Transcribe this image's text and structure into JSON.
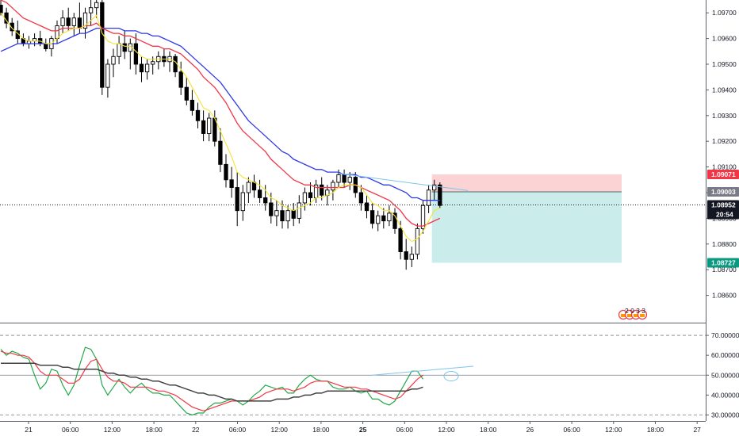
{
  "chart_data": [
    {
      "type": "candlestick",
      "panel": "price",
      "ylim": [
        1.085,
        1.0975
      ],
      "yticks": [
        "1.09700",
        "1.09600",
        "1.09500",
        "1.09400",
        "1.09300",
        "1.09200",
        "1.09100",
        "1.09000",
        "1.08900",
        "1.08800",
        "1.08700",
        "1.08600"
      ],
      "price_labels": {
        "stop": {
          "text": "1.09071",
          "value": 1.09071,
          "color": "#f23645"
        },
        "entry": {
          "text": "1.09003",
          "value": 1.09003,
          "color": "#787b86"
        },
        "current": {
          "text": "1.08952",
          "value": 1.08952,
          "color": "#131722"
        },
        "countdown": {
          "text": "20:54",
          "color": "#131722"
        },
        "target": {
          "text": "1.08727",
          "value": 1.08727,
          "color": "#089981"
        }
      },
      "position": {
        "type": "short",
        "entry": 1.09003,
        "stop": 1.09071,
        "target": 1.08727,
        "risk_color": "#fccbcd",
        "reward_color": "#c7ebe9"
      },
      "candles": [
        [
          1.0973,
          1.0976,
          1.0969,
          1.097
        ],
        [
          1.097,
          1.0972,
          1.0964,
          1.0966
        ],
        [
          1.0966,
          1.0968,
          1.0961,
          1.0963
        ],
        [
          1.0963,
          1.0967,
          1.0958,
          1.096
        ],
        [
          1.096,
          1.0962,
          1.0957,
          1.0958
        ],
        [
          1.0958,
          1.0961,
          1.0956,
          1.0959
        ],
        [
          1.0959,
          1.0962,
          1.0957,
          1.096
        ],
        [
          1.096,
          1.0963,
          1.0957,
          1.0958
        ],
        [
          1.0958,
          1.096,
          1.0955,
          1.0956
        ],
        [
          1.0956,
          1.0961,
          1.0953,
          1.096
        ],
        [
          1.096,
          1.0967,
          1.0958,
          1.0965
        ],
        [
          1.0965,
          1.0971,
          1.0962,
          1.0968
        ],
        [
          1.0968,
          1.0972,
          1.0963,
          1.0965
        ],
        [
          1.0965,
          1.097,
          1.0961,
          1.0968
        ],
        [
          1.0968,
          1.0974,
          1.0962,
          1.0964
        ],
        [
          1.0964,
          1.0972,
          1.096,
          1.097
        ],
        [
          1.097,
          1.0976,
          1.0965,
          1.0972
        ],
        [
          1.0972,
          1.0976,
          1.0968,
          1.0974
        ],
        [
          1.0974,
          1.0976,
          1.0938,
          1.0941
        ],
        [
          1.0941,
          1.0952,
          1.0937,
          1.095
        ],
        [
          1.095,
          1.0956,
          1.0945,
          1.0953
        ],
        [
          1.0953,
          1.0961,
          1.095,
          1.0958
        ],
        [
          1.0958,
          1.0963,
          1.0952,
          1.0955
        ],
        [
          1.0955,
          1.096,
          1.0948,
          1.0958
        ],
        [
          1.0958,
          1.0962,
          1.0946,
          1.095
        ],
        [
          1.095,
          1.0953,
          1.0943,
          1.0947
        ],
        [
          1.0947,
          1.0952,
          1.0944,
          1.095
        ],
        [
          1.095,
          1.0953,
          1.0946,
          1.0951
        ],
        [
          1.0951,
          1.0955,
          1.0948,
          1.0953
        ],
        [
          1.0953,
          1.0956,
          1.0949,
          1.0951
        ],
        [
          1.0951,
          1.0955,
          1.0947,
          1.0953
        ],
        [
          1.0953,
          1.0954,
          1.0945,
          1.0947
        ],
        [
          1.0947,
          1.0951,
          1.0938,
          1.0941
        ],
        [
          1.0941,
          1.0945,
          1.0934,
          1.0936
        ],
        [
          1.0936,
          1.094,
          1.093,
          1.0932
        ],
        [
          1.0932,
          1.0935,
          1.0925,
          1.0928
        ],
        [
          1.0928,
          1.0932,
          1.092,
          1.0923
        ],
        [
          1.0923,
          1.0931,
          1.092,
          1.0929
        ],
        [
          1.0929,
          1.0932,
          1.0918,
          1.092
        ],
        [
          1.092,
          1.0925,
          1.0908,
          1.0911
        ],
        [
          1.0911,
          1.0915,
          1.0902,
          1.0905
        ],
        [
          1.0905,
          1.091,
          1.0898,
          1.0902
        ],
        [
          1.0902,
          1.0908,
          1.0887,
          1.0893
        ],
        [
          1.0893,
          1.0903,
          1.0889,
          1.09
        ],
        [
          1.09,
          1.0906,
          1.0896,
          1.0904
        ],
        [
          1.0904,
          1.0907,
          1.0898,
          1.0901
        ],
        [
          1.0901,
          1.0905,
          1.0896,
          1.0898
        ],
        [
          1.0898,
          1.0903,
          1.0893,
          1.0896
        ],
        [
          1.0896,
          1.09,
          1.0888,
          1.0891
        ],
        [
          1.0891,
          1.0897,
          1.0887,
          1.0893
        ],
        [
          1.0893,
          1.0897,
          1.0886,
          1.0889
        ],
        [
          1.0889,
          1.0895,
          1.0886,
          1.0893
        ],
        [
          1.0893,
          1.0896,
          1.0887,
          1.089
        ],
        [
          1.089,
          1.0899,
          1.0888,
          1.0896
        ],
        [
          1.0896,
          1.0902,
          1.0893,
          1.09
        ],
        [
          1.09,
          1.0904,
          1.0895,
          1.0898
        ],
        [
          1.0898,
          1.0905,
          1.0896,
          1.0903
        ],
        [
          1.0903,
          1.0906,
          1.0897,
          1.0899
        ],
        [
          1.0899,
          1.0903,
          1.0895,
          1.0901
        ],
        [
          1.0901,
          1.0905,
          1.0897,
          1.0904
        ],
        [
          1.0904,
          1.0909,
          1.0902,
          1.0907
        ],
        [
          1.0907,
          1.0909,
          1.0902,
          1.0904
        ],
        [
          1.0904,
          1.0908,
          1.0901,
          1.0906
        ],
        [
          1.0906,
          1.0908,
          1.0898,
          1.09
        ],
        [
          1.09,
          1.0903,
          1.0893,
          1.0896
        ],
        [
          1.0896,
          1.0899,
          1.089,
          1.0893
        ],
        [
          1.0893,
          1.0896,
          1.0886,
          1.0888
        ],
        [
          1.0888,
          1.0893,
          1.0885,
          1.0891
        ],
        [
          1.0891,
          1.0894,
          1.0886,
          1.0889
        ],
        [
          1.0889,
          1.0895,
          1.0887,
          1.0892
        ],
        [
          1.0892,
          1.0894,
          1.0884,
          1.0886
        ],
        [
          1.0886,
          1.0889,
          1.0874,
          1.0877
        ],
        [
          1.0877,
          1.0882,
          1.087,
          1.0874
        ],
        [
          1.0874,
          1.0879,
          1.0871,
          1.0876
        ],
        [
          1.0876,
          1.0888,
          1.0874,
          1.0886
        ],
        [
          1.0886,
          1.0897,
          1.0884,
          1.0895
        ],
        [
          1.0895,
          1.0903,
          1.0892,
          1.0901
        ],
        [
          1.0901,
          1.0905,
          1.0897,
          1.0903
        ],
        [
          1.0903,
          1.0904,
          1.0894,
          1.0895
        ]
      ],
      "ema_fast": [
        1.097,
        1.0967,
        1.0964,
        1.0962,
        1.096,
        1.0959,
        1.0959,
        1.0959,
        1.0958,
        1.0958,
        1.096,
        1.0962,
        1.0963,
        1.0964,
        1.0964,
        1.0965,
        1.0967,
        1.0969,
        1.0962,
        1.0959,
        1.0958,
        1.0958,
        1.0957,
        1.0957,
        1.0955,
        1.0953,
        1.0952,
        1.0952,
        1.0952,
        1.0952,
        1.0952,
        1.0951,
        1.0948,
        1.0945,
        1.0941,
        1.0937,
        1.0933,
        1.0932,
        1.0929,
        1.0924,
        1.0919,
        1.0914,
        1.0908,
        1.0906,
        1.0905,
        1.0904,
        1.0903,
        1.0901,
        1.0898,
        1.0897,
        1.0895,
        1.0894,
        1.0893,
        1.0894,
        1.0895,
        1.0896,
        1.0898,
        1.0898,
        1.0899,
        1.09,
        1.0902,
        1.0903,
        1.0903,
        1.0903,
        1.0902,
        1.0899,
        1.0896,
        1.0895,
        1.0893,
        1.0893,
        1.0891,
        1.0887,
        1.0883,
        1.0881,
        1.0882,
        1.0885,
        1.0889,
        1.0893,
        1.0894
      ],
      "ema_mid": [
        1.0975,
        1.0974,
        1.0972,
        1.097,
        1.0968,
        1.0967,
        1.0966,
        1.0965,
        1.0964,
        1.0963,
        1.0963,
        1.0964,
        1.0964,
        1.0964,
        1.0964,
        1.0965,
        1.0965,
        1.0966,
        1.0964,
        1.0963,
        1.0962,
        1.0962,
        1.0961,
        1.0961,
        1.096,
        1.0959,
        1.0958,
        1.0957,
        1.0957,
        1.0956,
        1.0956,
        1.0955,
        1.0954,
        1.0952,
        1.095,
        1.0948,
        1.0945,
        1.0943,
        1.0941,
        1.0938,
        1.0935,
        1.0931,
        1.0927,
        1.0924,
        1.0922,
        1.092,
        1.0918,
        1.0916,
        1.0913,
        1.0911,
        1.0909,
        1.0907,
        1.0905,
        1.0904,
        1.0903,
        1.0903,
        1.0902,
        1.0902,
        1.0902,
        1.0902,
        1.0902,
        1.0902,
        1.0903,
        1.0903,
        1.0902,
        1.0901,
        1.09,
        1.0899,
        1.0898,
        1.0897,
        1.0895,
        1.0893,
        1.089,
        1.0888,
        1.0887,
        1.0887,
        1.0888,
        1.0889,
        1.089
      ],
      "ema_slow": [
        1.0955,
        1.0956,
        1.0957,
        1.0958,
        1.0958,
        1.0958,
        1.0958,
        1.0958,
        1.0958,
        1.0958,
        1.0958,
        1.0959,
        1.096,
        1.0961,
        1.0962,
        1.0962,
        1.0963,
        1.0964,
        1.0964,
        1.0964,
        1.0964,
        1.0964,
        1.0963,
        1.0963,
        1.0963,
        1.0962,
        1.0962,
        1.0961,
        1.0961,
        1.096,
        1.0959,
        1.0958,
        1.0957,
        1.0955,
        1.0953,
        1.0951,
        1.0949,
        1.0947,
        1.0945,
        1.0943,
        1.094,
        1.0937,
        1.0934,
        1.0931,
        1.0928,
        1.0926,
        1.0924,
        1.0922,
        1.092,
        1.0918,
        1.0916,
        1.0915,
        1.0913,
        1.0912,
        1.0911,
        1.091,
        1.0909,
        1.0909,
        1.0908,
        1.0908,
        1.0908,
        1.0907,
        1.0907,
        1.0907,
        1.0906,
        1.0906,
        1.0905,
        1.0904,
        1.0903,
        1.0903,
        1.0902,
        1.0901,
        1.09,
        1.0898,
        1.0898,
        1.0897,
        1.0897,
        1.0897,
        1.0897
      ],
      "colors": {
        "candle": "#000000",
        "ema_fast": "#f4e434",
        "ema_mid": "#f23645",
        "ema_slow": "#2e39e8",
        "trendline": "#7ec3ed",
        "axis_text": "#131722"
      },
      "grid": false
    },
    {
      "type": "line",
      "panel": "oscillator",
      "ylim": [
        27,
        76
      ],
      "yticks": [
        "70.00000",
        "60.00000",
        "50.00000",
        "40.00000",
        "30.00000"
      ],
      "levels": [
        70,
        50,
        30
      ],
      "series": [
        {
          "color": "#22a84a",
          "values": [
            63,
            60,
            62,
            61,
            59,
            58,
            50,
            43,
            46,
            53,
            52,
            45,
            40,
            45,
            55,
            64,
            63,
            58,
            45,
            40,
            44,
            48,
            44,
            41,
            44,
            46,
            43,
            41,
            41,
            40,
            40,
            37,
            34,
            31,
            30,
            31,
            31,
            34,
            36,
            36,
            37,
            38,
            37,
            35,
            37,
            40,
            42,
            45,
            44,
            43,
            44,
            41,
            41,
            45,
            48,
            50,
            48,
            47,
            47,
            44,
            43,
            43,
            44,
            42,
            41,
            42,
            38,
            38,
            36,
            35,
            37,
            42,
            47,
            52,
            52,
            48
          ]
        },
        {
          "color": "#f23645",
          "values": [
            62,
            61,
            61,
            60,
            60,
            59,
            56,
            52,
            50,
            50,
            50,
            48,
            46,
            46,
            48,
            53,
            57,
            58,
            53,
            49,
            47,
            47,
            46,
            44,
            44,
            44,
            44,
            43,
            42,
            42,
            41,
            40,
            38,
            36,
            34,
            33,
            32,
            33,
            34,
            35,
            36,
            37,
            37,
            37,
            37,
            38,
            39,
            41,
            42,
            43,
            43,
            43,
            42,
            43,
            44,
            46,
            47,
            47,
            47,
            46,
            45,
            44,
            44,
            44,
            43,
            43,
            42,
            41,
            40,
            39,
            38,
            39,
            42,
            45,
            48,
            50
          ]
        },
        {
          "color": "#424242",
          "values": [
            56,
            56,
            56,
            56,
            56,
            56,
            56,
            55,
            55,
            55,
            55,
            54,
            54,
            53,
            53,
            53,
            53,
            53,
            52,
            51,
            51,
            50,
            50,
            49,
            49,
            48,
            48,
            47,
            47,
            46,
            45,
            45,
            44,
            43,
            42,
            41,
            41,
            40,
            40,
            39,
            38,
            38,
            37,
            37,
            37,
            37,
            37,
            37,
            37,
            38,
            38,
            38,
            39,
            39,
            40,
            40,
            41,
            41,
            42,
            42,
            42,
            42,
            42,
            42,
            42,
            42,
            42,
            42,
            42,
            42,
            42,
            42,
            42,
            43,
            43,
            44
          ]
        }
      ],
      "trendline_color": "#7ec3ed"
    }
  ],
  "xaxis": {
    "labels": [
      "21",
      "06:00",
      "12:00",
      "18:00",
      "22",
      "06:00",
      "12:00",
      "18:00",
      "25",
      "06:00",
      "12:00",
      "18:00",
      "26",
      "06:00",
      "12:00",
      "18:00",
      "27"
    ],
    "bold": [
      false,
      false,
      false,
      false,
      false,
      false,
      false,
      false,
      true,
      false,
      false,
      false,
      false,
      false,
      false,
      false,
      false
    ]
  },
  "events": {
    "label": "2 0 3 3",
    "count": 4,
    "colors": [
      "#f23645",
      "#ff9800"
    ]
  }
}
